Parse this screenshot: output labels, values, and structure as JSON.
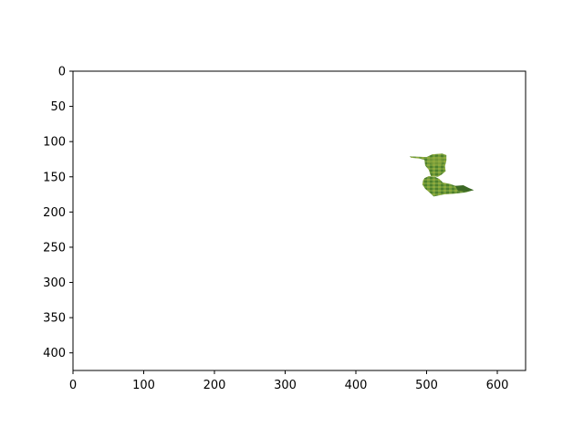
{
  "chart_data": {
    "type": "image",
    "title": "",
    "xlabel": "",
    "ylabel": "",
    "xlim": [
      0,
      640
    ],
    "ylim": [
      425,
      0
    ],
    "x_ticks": [
      0,
      100,
      200,
      300,
      400,
      500,
      600
    ],
    "y_ticks": [
      0,
      50,
      100,
      150,
      200,
      250,
      300,
      350,
      400
    ],
    "grid": false,
    "y_axis_inverted": true,
    "image_content": "green vegetation patch",
    "patch_colors": [
      "#8faa3e",
      "#6e9a3a",
      "#4f7f2c",
      "#3b6824"
    ],
    "patch_extent": {
      "x_range": [
        478,
        568
      ],
      "y_range": [
        118,
        178
      ]
    }
  }
}
